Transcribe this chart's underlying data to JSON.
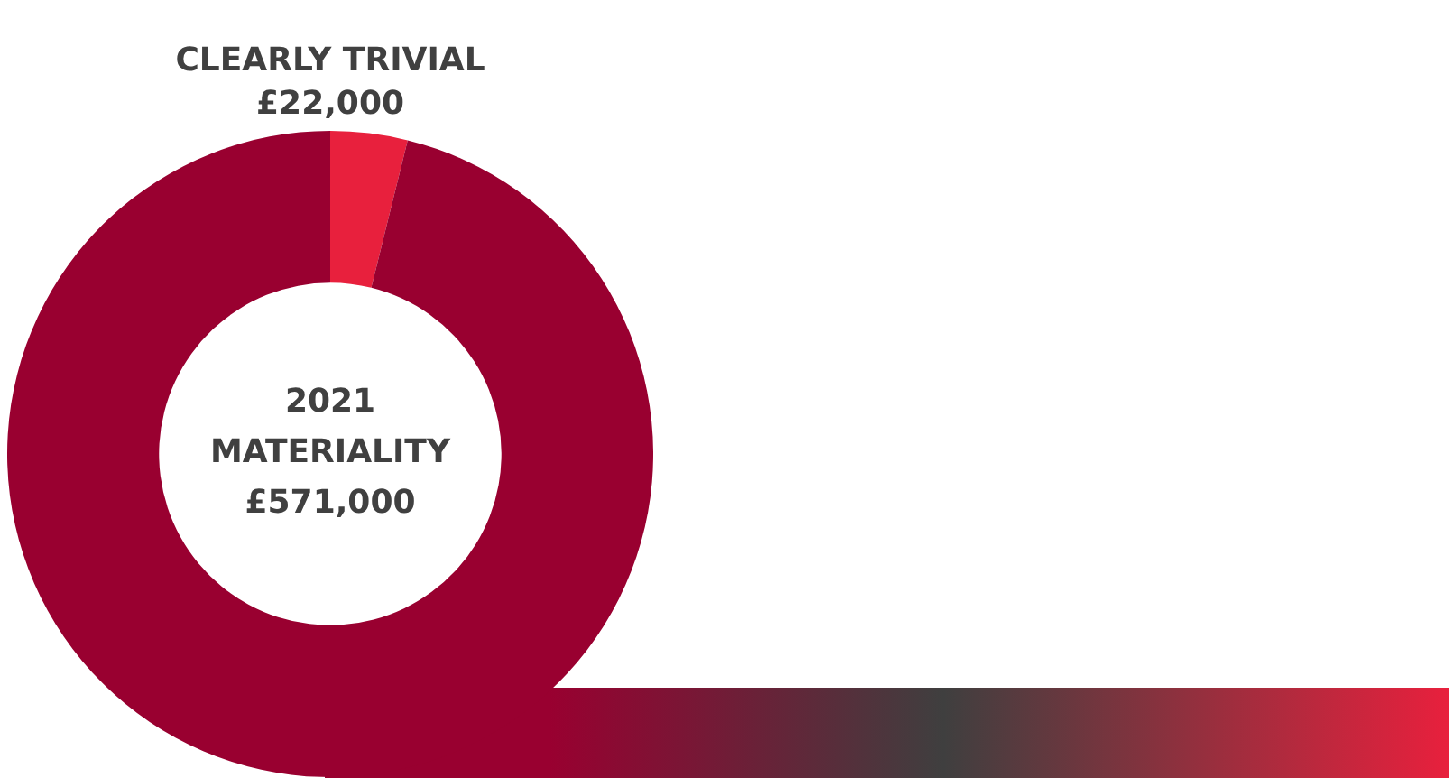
{
  "chart_data": {
    "type": "donut",
    "categories": [
      "CLEARLY TRIVIAL",
      null
    ],
    "values": [
      22000,
      549000
    ],
    "colors": [
      "#e8203d",
      "#990030"
    ],
    "value_labels": [
      "£22,000",
      null
    ],
    "annotations": [
      "2021 MATERIALITY £571,000"
    ],
    "legend": false
  }
}
